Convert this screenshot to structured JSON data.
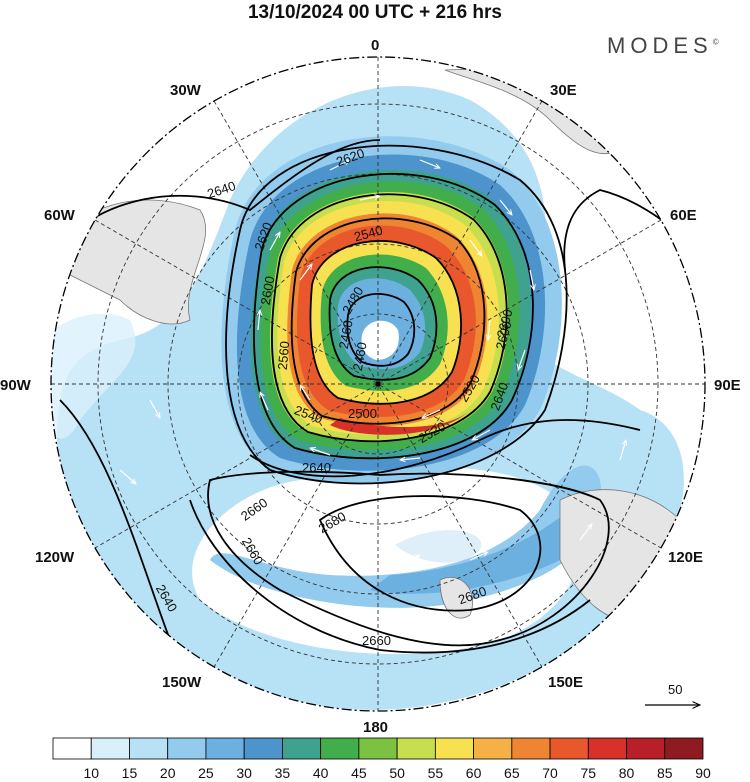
{
  "title": "13/10/2024  00 UTC  + 216 hrs",
  "brand": "MODES",
  "brand_mark": "©",
  "longitude_labels": {
    "top": "0",
    "top_right": "30E",
    "right_upper": "60E",
    "right": "90E",
    "right_lower": "120E",
    "bottom_right": "150E",
    "bottom": "180",
    "bottom_left": "150W",
    "left_lower": "120W",
    "left": "90W",
    "left_upper": "60W",
    "top_left": "30W"
  },
  "contour_labels": [
    "2620",
    "2640",
    "2620",
    "2600",
    "2540",
    "2480",
    "2460",
    "2460",
    "2560",
    "2600",
    "2520",
    "2500",
    "2540",
    "2520",
    "2640",
    "2640",
    "2660",
    "2680",
    "2660",
    "2680",
    "2640",
    "2660",
    "2600"
  ],
  "vector_reference": {
    "label": "50"
  },
  "colorbar": {
    "labels": [
      "10",
      "15",
      "20",
      "25",
      "30",
      "35",
      "40",
      "45",
      "50",
      "55",
      "60",
      "65",
      "70",
      "75",
      "80",
      "85",
      "90"
    ],
    "colors": [
      "#ffffff",
      "#d9f0fb",
      "#b7e1f5",
      "#92cbed",
      "#6cb0e0",
      "#4d93cc",
      "#3fa28e",
      "#41ae4b",
      "#7cc242",
      "#c7df4f",
      "#f7e150",
      "#f5b146",
      "#ef8433",
      "#e8582c",
      "#d8312a",
      "#b91f28",
      "#8f1a1f"
    ]
  }
}
